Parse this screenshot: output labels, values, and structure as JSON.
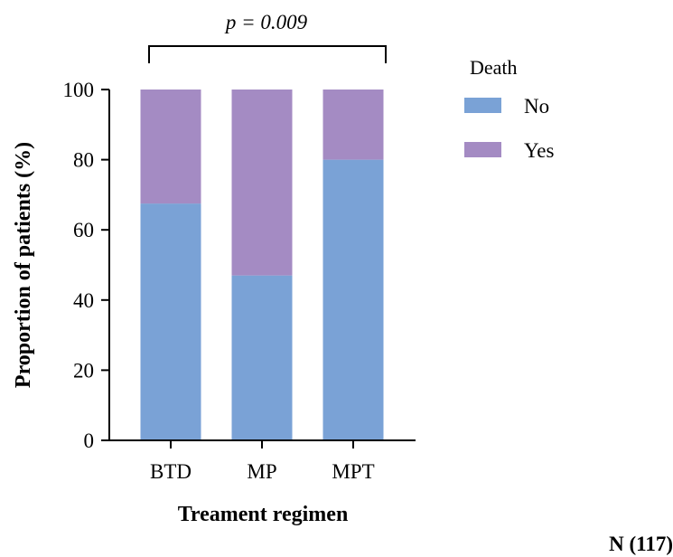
{
  "chart_data": {
    "type": "bar",
    "stacked": true,
    "categories": [
      "BTD",
      "MP",
      "MPT"
    ],
    "series": [
      {
        "name": "No",
        "color": "#7aa2d6",
        "values": [
          67.5,
          47,
          80
        ]
      },
      {
        "name": "Yes",
        "color": "#a48bc3",
        "values": [
          32.5,
          53,
          20
        ]
      }
    ],
    "ylim": [
      0,
      100
    ],
    "yticks": [
      0,
      20,
      40,
      60,
      80,
      100
    ],
    "ylabel": "Proportion of patients (%)",
    "xlabel": "Treament regimen",
    "legend": {
      "title": "Death",
      "placement": "right"
    },
    "annotation": "p = 0.009",
    "note": "N (117)"
  }
}
